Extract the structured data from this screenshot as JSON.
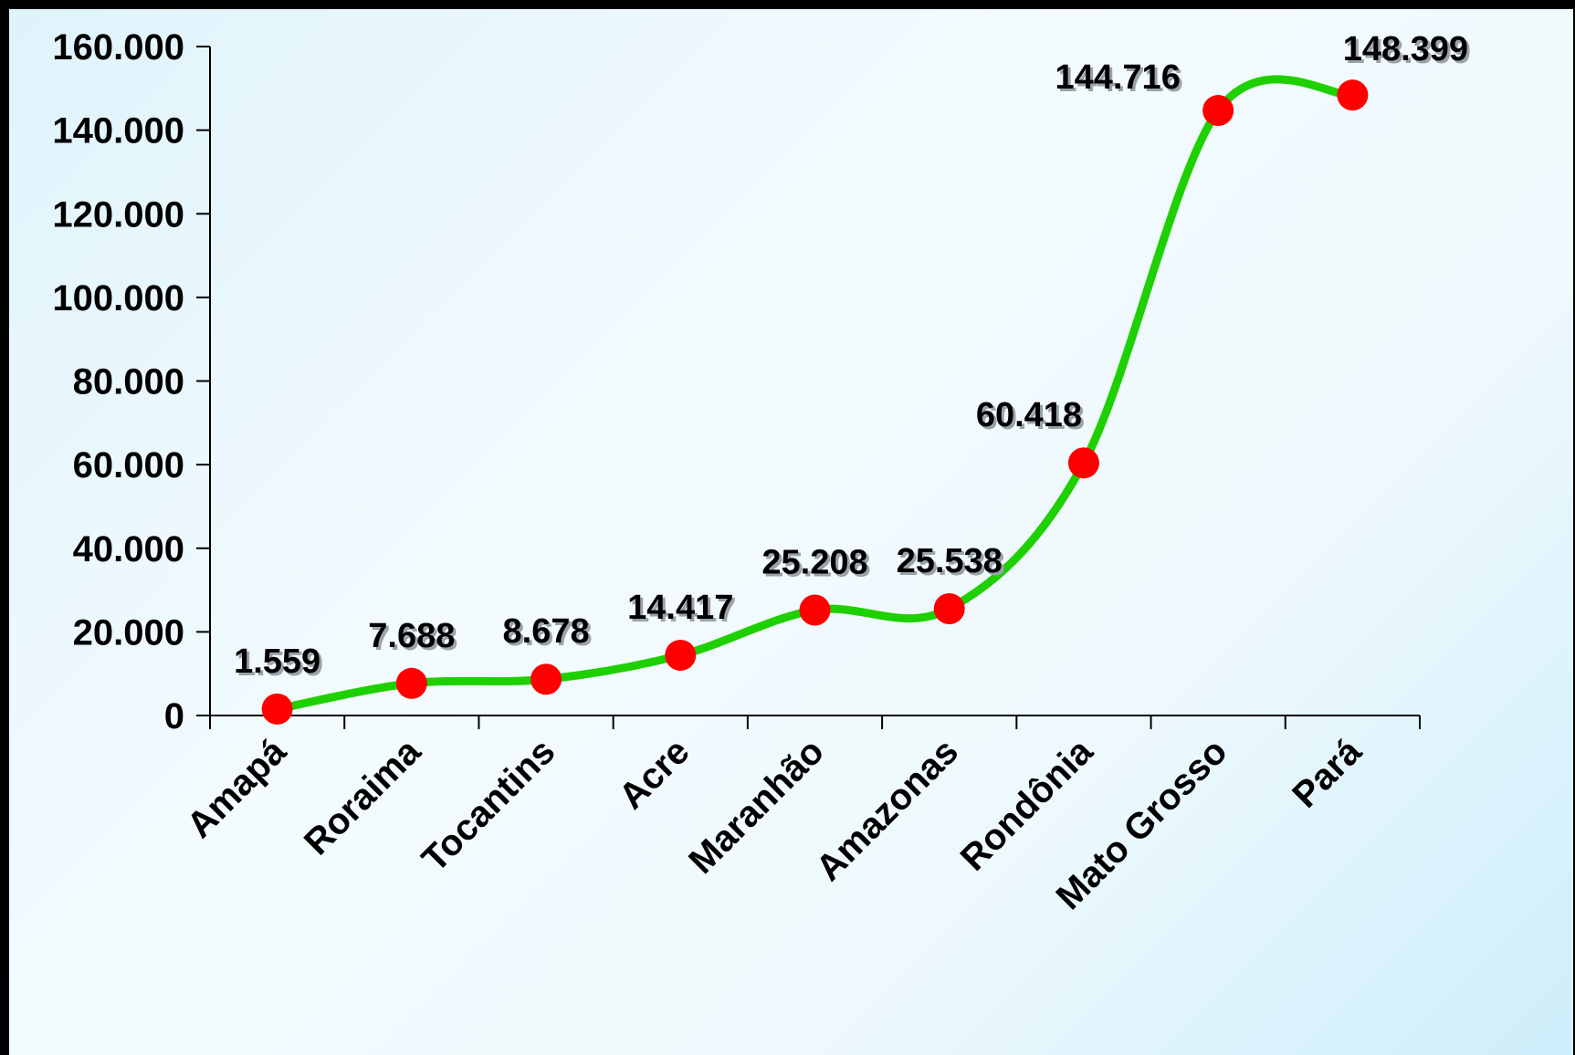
{
  "chart_data": {
    "type": "line",
    "categories": [
      "Amapá",
      "Roraima",
      "Tocantins",
      "Acre",
      "Maranhão",
      "Amazonas",
      "Rondônia",
      "Mato Grosso",
      "Pará"
    ],
    "values": [
      1559,
      7688,
      8678,
      14417,
      25208,
      25538,
      60418,
      144716,
      148399
    ],
    "data_labels": [
      "1.559",
      "7.688",
      "8.678",
      "14.417",
      "25.208",
      "25.538",
      "60.418",
      "144.716",
      "148.399"
    ],
    "y_ticks": [
      0,
      20000,
      40000,
      60000,
      80000,
      100000,
      120000,
      140000,
      160000
    ],
    "y_tick_labels": [
      "0",
      "20.000",
      "40.000",
      "60.000",
      "80.000",
      "100.000",
      "120.000",
      "140.000",
      "160.000"
    ],
    "ylim": [
      0,
      160000
    ],
    "title": "",
    "xlabel": "",
    "ylabel": "",
    "grid": false,
    "smooth": true,
    "line_color": "#1fd000",
    "marker_color": "#ff0000"
  }
}
